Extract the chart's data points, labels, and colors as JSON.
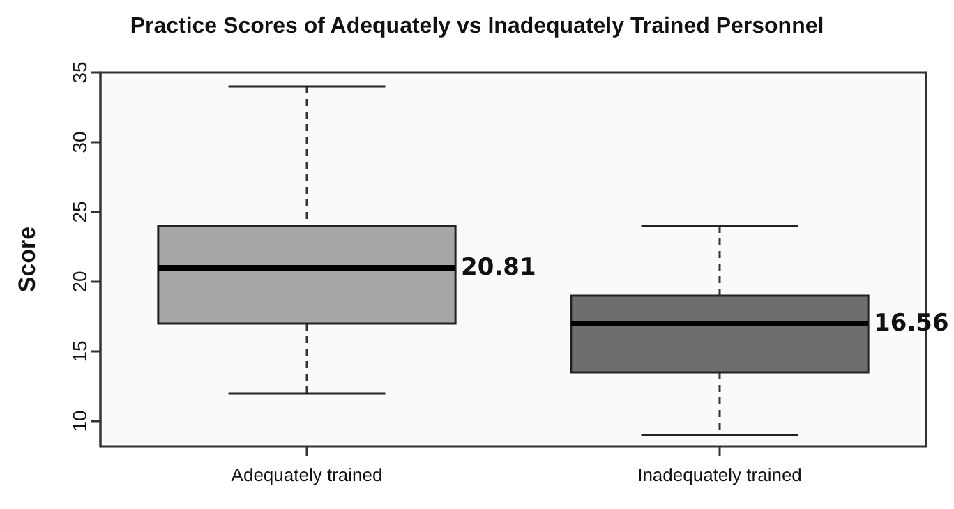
{
  "chart_data": {
    "type": "box",
    "title": "Practice Scores of Adequately vs Inadequately Trained Personnel",
    "ylabel": "Score",
    "categories": [
      "Adequately trained",
      "Inadequately trained"
    ],
    "boxes": [
      {
        "low": 12,
        "q1": 17,
        "median": 21,
        "q3": 24,
        "high": 34
      },
      {
        "low": 9,
        "q1": 13.5,
        "median": 17,
        "q3": 19,
        "high": 24
      }
    ],
    "colors": [
      "#a6a6a6",
      "#6e6e6e"
    ],
    "ylim": [
      8.2,
      35
    ],
    "yticks": [
      10,
      15,
      20,
      25,
      30,
      35
    ],
    "grid": false,
    "annotations": [
      "20.81",
      "16.56"
    ]
  }
}
